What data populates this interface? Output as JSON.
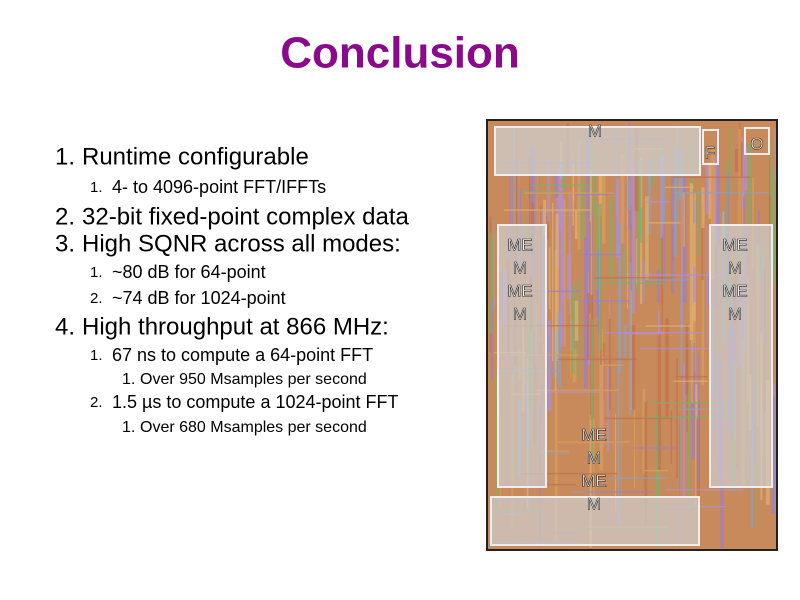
{
  "title": "Conclusion",
  "lines": [
    {
      "level": 0,
      "marker": "1.",
      "text": "Runtime configurable"
    },
    {
      "level": 1,
      "marker": "1.",
      "text": "4- to 4096-point FFT/IFFTs"
    },
    {
      "level": 0,
      "marker": "2.",
      "text": "32-bit fixed-point complex data"
    },
    {
      "level": 0,
      "marker": "3.",
      "text": "High SQNR across all modes:"
    },
    {
      "level": 1,
      "marker": "1.",
      "text": "~80 dB for 64-point"
    },
    {
      "level": 1,
      "marker": "2.",
      "text": "~74 dB for 1024-point"
    },
    {
      "level": 0,
      "marker": "4.",
      "text": "High throughput at 866 MHz:"
    },
    {
      "level": 1,
      "marker": "1.",
      "text": "67 ns to compute a 64-point FFT"
    },
    {
      "level": 2,
      "marker": "1.",
      "text": "Over 950 Msamples per second"
    },
    {
      "level": 1,
      "marker": "2.",
      "text": "1.5 µs to compute a 1024-point FFT"
    },
    {
      "level": 2,
      "marker": "1.",
      "text": "Over 680 Msamples per second"
    }
  ],
  "die": {
    "top": "M",
    "f": "F",
    "o": "O",
    "left": [
      "ME",
      "M",
      "ME",
      "M"
    ],
    "right": [
      "ME",
      "M",
      "ME",
      "M"
    ],
    "bottom": [
      "ME",
      "M",
      "ME",
      "M"
    ]
  }
}
